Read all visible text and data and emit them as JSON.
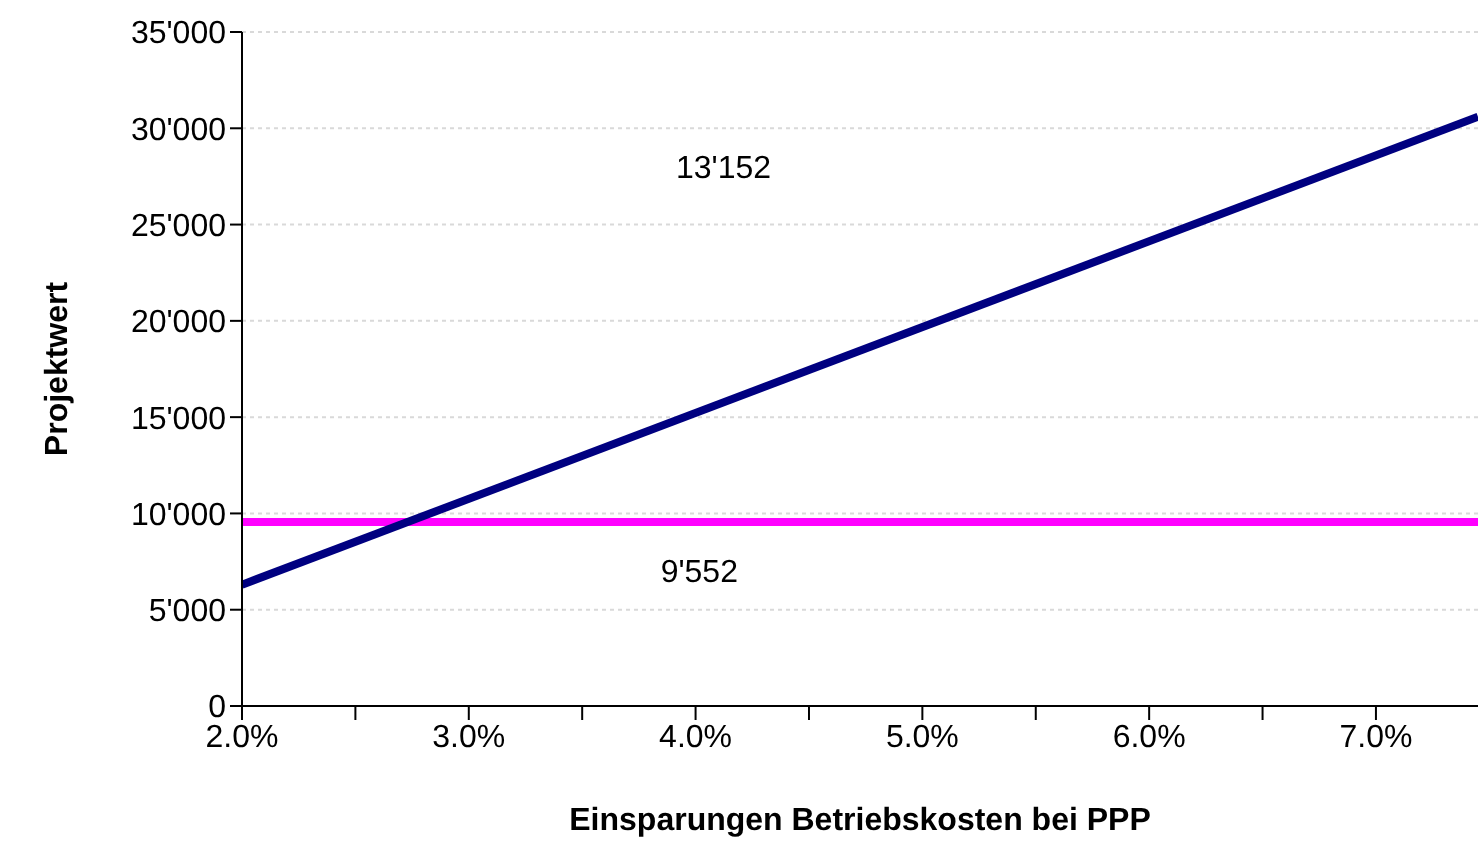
{
  "chart_data": {
    "type": "line",
    "xlabel": "Einsparungen Betriebskosten bei PPP",
    "ylabel": "Projektwert",
    "x": [
      2.0,
      7.45
    ],
    "series": [
      {
        "color": "#000080",
        "values": [
          6300,
          30600
        ]
      }
    ],
    "ref_lines": [
      {
        "axis": "y",
        "value": 9552,
        "label": "9'552",
        "color": "#ff00ff"
      }
    ],
    "annotations": [
      "13'152"
    ],
    "xlim": [
      2.0,
      7.45
    ],
    "xticks": [
      {
        "value": 2.0,
        "label": "2.0%"
      },
      {
        "value": 2.5,
        "label": null
      },
      {
        "value": 3.0,
        "label": "3.0%"
      },
      {
        "value": 3.5,
        "label": null
      },
      {
        "value": 4.0,
        "label": "4.0%"
      },
      {
        "value": 4.5,
        "label": null
      },
      {
        "value": 5.0,
        "label": "5.0%"
      },
      {
        "value": 5.5,
        "label": null
      },
      {
        "value": 6.0,
        "label": "6.0%"
      },
      {
        "value": 6.5,
        "label": null
      },
      {
        "value": 7.0,
        "label": "7.0%"
      }
    ],
    "ylim": [
      0,
      35000
    ],
    "yticks": [
      {
        "value": 0,
        "label": "0"
      },
      {
        "value": 5000,
        "label": "5'000"
      },
      {
        "value": 10000,
        "label": "10'000"
      },
      {
        "value": 15000,
        "label": "15'000"
      },
      {
        "value": 20000,
        "label": "20'000"
      },
      {
        "value": 25000,
        "label": "25'000"
      },
      {
        "value": 30000,
        "label": "30'000"
      },
      {
        "value": 35000,
        "label": "35'000"
      }
    ],
    "grid": "y",
    "marker": "none",
    "line_style": "solid"
  }
}
